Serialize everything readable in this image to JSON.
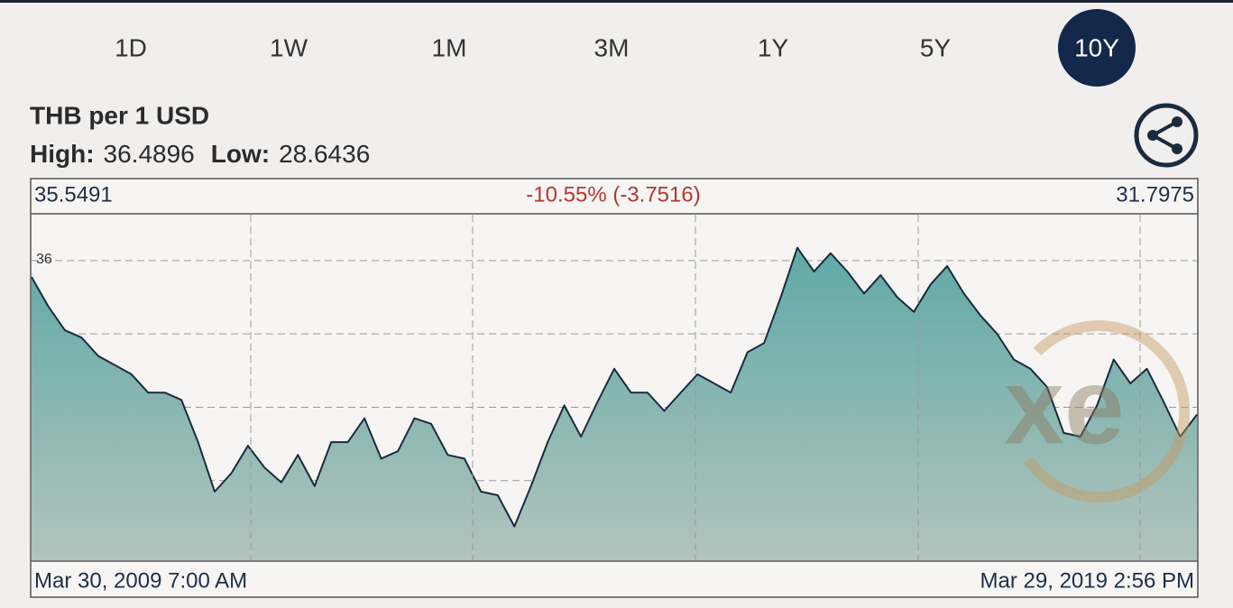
{
  "tabs": [
    "1D",
    "1W",
    "1M",
    "3M",
    "1Y",
    "5Y",
    "10Y"
  ],
  "selected_tab": "10Y",
  "header": {
    "title": "THB per 1 USD",
    "high_label": "High:",
    "high": 36.4896,
    "low_label": "Low:",
    "low": 28.6436
  },
  "summary": {
    "start_value": 35.5491,
    "change": "-10.55% (-3.7516)",
    "end_value": 31.7975
  },
  "watermark": "xe",
  "chart_data": {
    "type": "line",
    "categories": [
      "Mar 30, 2009 7:00 AM",
      null,
      null,
      null,
      null,
      null,
      null,
      null,
      null,
      null,
      null,
      null,
      null,
      null,
      null,
      null,
      null,
      null,
      null,
      null,
      null,
      null,
      null,
      null,
      null,
      null,
      null,
      null,
      null,
      null,
      null,
      null,
      null,
      null,
      null,
      null,
      null,
      null,
      null,
      null,
      null,
      null,
      null,
      null,
      null,
      null,
      null,
      null,
      null,
      null,
      null,
      null,
      null,
      null,
      null,
      null,
      null,
      null,
      null,
      null,
      null,
      null,
      null,
      null,
      null,
      null,
      null,
      null,
      null,
      null,
      "Mar 29, 2019 2:56 PM"
    ],
    "series": [
      {
        "color": "#1b2b3e",
        "values": [
          35.55,
          34.75,
          34.1,
          33.9,
          33.4,
          33.15,
          32.9,
          32.4,
          32.4,
          32.2,
          31.05,
          29.7,
          30.2,
          30.95,
          30.35,
          29.95,
          30.7,
          29.85,
          31.05,
          31.05,
          31.7,
          30.6,
          30.8,
          31.7,
          31.55,
          30.7,
          30.6,
          29.7,
          29.6,
          28.75,
          29.85,
          31.05,
          32.05,
          31.2,
          32.15,
          33.05,
          32.4,
          32.4,
          31.9,
          32.4,
          32.9,
          32.65,
          32.4,
          33.5,
          33.75,
          35.0,
          36.35,
          35.7,
          36.2,
          35.7,
          35.1,
          35.6,
          35.0,
          34.6,
          35.35,
          35.85,
          35.1,
          34.5,
          34.0,
          33.3,
          33.05,
          32.55,
          31.3,
          31.2,
          32.05,
          33.3,
          32.65,
          33.05,
          32.15,
          31.2,
          31.8
        ]
      }
    ],
    "area_color": "#5fa9a7",
    "ylim": [
      27.83,
      37.25
    ],
    "yticks": [
      28,
      30,
      32,
      34,
      36
    ],
    "grid": true
  }
}
